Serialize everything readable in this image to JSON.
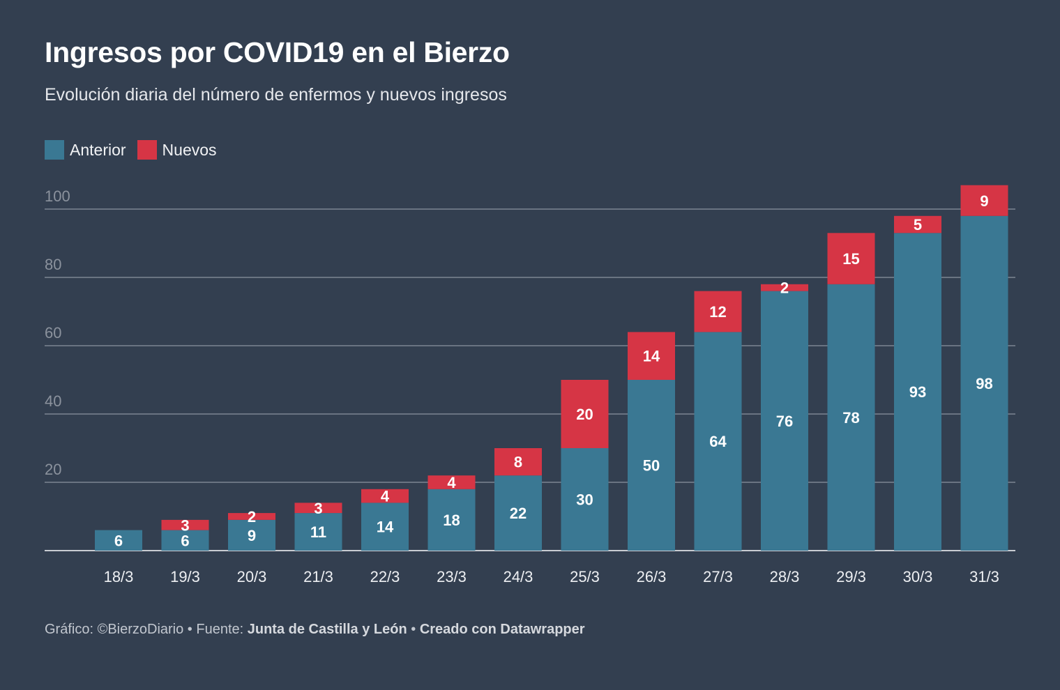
{
  "header": {
    "title": "Ingresos por COVID19 en el Bierzo",
    "subtitle": "Evolución diaria del número de enfermos y nuevos ingresos"
  },
  "legend": [
    {
      "label": "Anterior",
      "color": "#3a7893"
    },
    {
      "label": "Nuevos",
      "color": "#d63545"
    }
  ],
  "footer": {
    "prefix": "Gráfico: ©BierzoDiario • Fuente: ",
    "source": "Junta de Castilla y León",
    "separator": " • ",
    "credit": "Creado con Datawrapper"
  },
  "chart_data": {
    "type": "bar",
    "stacked": true,
    "categories": [
      "18/3",
      "19/3",
      "20/3",
      "21/3",
      "22/3",
      "23/3",
      "24/3",
      "25/3",
      "26/3",
      "27/3",
      "28/3",
      "29/3",
      "30/3",
      "31/3"
    ],
    "series": [
      {
        "name": "Anterior",
        "color": "#3a7893",
        "values": [
          6,
          6,
          9,
          11,
          14,
          18,
          22,
          30,
          50,
          64,
          76,
          78,
          93,
          98
        ]
      },
      {
        "name": "Nuevos",
        "color": "#d63545",
        "values": [
          null,
          3,
          2,
          3,
          4,
          4,
          8,
          20,
          14,
          12,
          2,
          15,
          5,
          9
        ]
      }
    ],
    "ylim": [
      0,
      100
    ],
    "yticks": [
      20,
      40,
      60,
      80,
      100
    ],
    "grid": true,
    "legend_position": "top-left"
  }
}
